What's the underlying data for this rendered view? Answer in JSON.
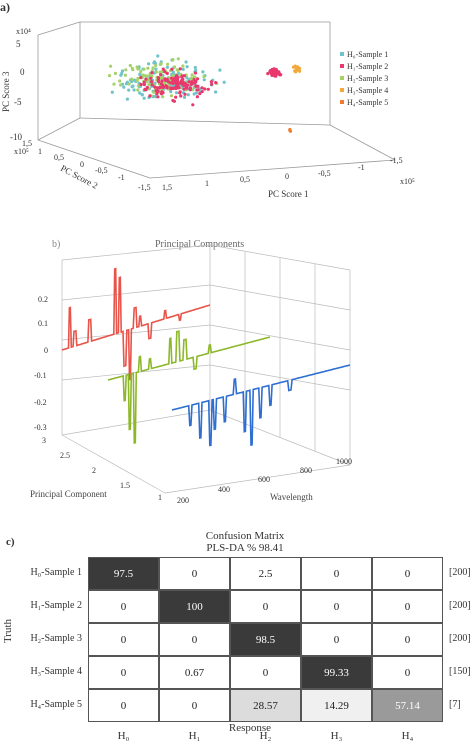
{
  "panels": {
    "a": {
      "tag": "a)"
    },
    "b": {
      "tag": "b)"
    },
    "c": {
      "tag": "c)"
    }
  },
  "chart_data": [
    {
      "type": "scatter",
      "panel": "a",
      "zlabel": "PC Score 3",
      "xlabel": "PC Score 1",
      "ylabel": "PC Score 2",
      "z_multiplier": "x10⁴",
      "x_multiplier": "x10⁵",
      "y_multiplier": "x10⁵",
      "z_ticks": [
        "5",
        "0",
        "-5",
        "-10"
      ],
      "x_ticks": [
        "1,5",
        "1",
        "0,5",
        "0",
        "-0,5",
        "-1",
        "-1,5"
      ],
      "y_ticks": [
        "1,5",
        "1",
        "0,5",
        "0",
        "-0,5",
        "-1",
        "-1,5"
      ],
      "legend_placement": "right",
      "series": [
        {
          "name": "H₀-Sample 1",
          "color": "#6fc3c9"
        },
        {
          "name": "H₁-Sample 2",
          "color": "#e8386c"
        },
        {
          "name": "H₂-Sample 3",
          "color": "#a5d36a"
        },
        {
          "name": "H₃-Sample 4",
          "color": "#f2a93b"
        },
        {
          "name": "H₄-Sample 5",
          "color": "#f07d2e"
        }
      ]
    },
    {
      "type": "line",
      "panel": "b",
      "title": "Principal Components",
      "xlabel": "Wavelength",
      "ylabel": "Principal Component",
      "z_ticks": [
        "0.2",
        "0.1",
        "0",
        "-0.1",
        "-0.2",
        "-0.3"
      ],
      "x_ticks": [
        "200",
        "400",
        "600",
        "800",
        "1000"
      ],
      "y_ticks": [
        "3",
        "2.5",
        "2",
        "1.5",
        "1"
      ],
      "series": [
        {
          "component": 1,
          "color": "#e8544a"
        },
        {
          "component": 2,
          "color": "#8db82a"
        },
        {
          "component": 3,
          "color": "#2e6fd1"
        }
      ]
    },
    {
      "type": "heatmap",
      "panel": "c",
      "title": "Confusion Matrix",
      "subtitle": "PLS-DA % 98.41",
      "xlabel": "Response",
      "ylabel": "Truth",
      "rows": [
        "H₀-Sample 1",
        "H₁-Sample 2",
        "H₂-Sample 3",
        "H₃-Sample 4",
        "H₄-Sample 5"
      ],
      "columns": [
        "H₀",
        "H₁",
        "H₂",
        "H₃",
        "H₄"
      ],
      "values": [
        [
          "97.5",
          "0",
          "2.5",
          "0",
          "0"
        ],
        [
          "0",
          "100",
          "0",
          "0",
          "0"
        ],
        [
          "0",
          "0",
          "98.5",
          "0",
          "0"
        ],
        [
          "0",
          "0.67",
          "0",
          "99.33",
          "0"
        ],
        [
          "0",
          "0",
          "28.57",
          "14.29",
          "57.14"
        ]
      ],
      "row_totals": [
        "[200]",
        "[200]",
        "[200]",
        "[150]",
        "[7]"
      ]
    }
  ]
}
